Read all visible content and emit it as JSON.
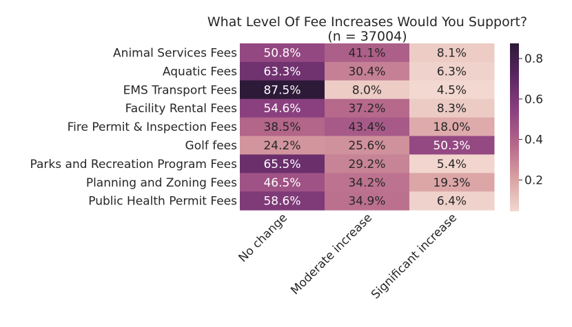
{
  "chart_data": {
    "type": "heatmap",
    "title": "What Level Of Fee Increases Would You Support?",
    "subtitle": "(n = 37004)",
    "rows": [
      "Animal Services Fees",
      "Aquatic Fees",
      "EMS Transport Fees",
      "Facility Rental Fees",
      "Fire Permit & Inspection Fees",
      "Golf fees",
      "Parks and Recreation Program Fees",
      "Planning and Zoning Fees",
      "Public Health Permit Fees"
    ],
    "columns": [
      "No change",
      "Moderate increase",
      "Significant increase"
    ],
    "values": [
      [
        0.508,
        0.411,
        0.081
      ],
      [
        0.633,
        0.304,
        0.063
      ],
      [
        0.875,
        0.08,
        0.045
      ],
      [
        0.546,
        0.372,
        0.083
      ],
      [
        0.385,
        0.434,
        0.18
      ],
      [
        0.242,
        0.256,
        0.503
      ],
      [
        0.655,
        0.292,
        0.054
      ],
      [
        0.465,
        0.342,
        0.193
      ],
      [
        0.586,
        0.349,
        0.064
      ]
    ],
    "labels": [
      [
        "50.8%",
        "41.1%",
        "8.1%"
      ],
      [
        "63.3%",
        "30.4%",
        "6.3%"
      ],
      [
        "87.5%",
        "8.0%",
        "4.5%"
      ],
      [
        "54.6%",
        "37.2%",
        "8.3%"
      ],
      [
        "38.5%",
        "43.4%",
        "18.0%"
      ],
      [
        "24.2%",
        "25.6%",
        "50.3%"
      ],
      [
        "65.5%",
        "29.2%",
        "5.4%"
      ],
      [
        "46.5%",
        "34.2%",
        "19.3%"
      ],
      [
        "58.6%",
        "34.9%",
        "6.4%"
      ]
    ],
    "colorbar": {
      "range": [
        0.045,
        0.875
      ],
      "ticks": [
        0.2,
        0.4,
        0.6,
        0.8
      ],
      "tick_labels": [
        "0.2",
        "0.4",
        "0.6",
        "0.8"
      ],
      "colormap_stops": [
        "#f2d8d0",
        "#d9a0a2",
        "#b5678a",
        "#8b4080",
        "#5b2763",
        "#2d1a38"
      ]
    }
  }
}
